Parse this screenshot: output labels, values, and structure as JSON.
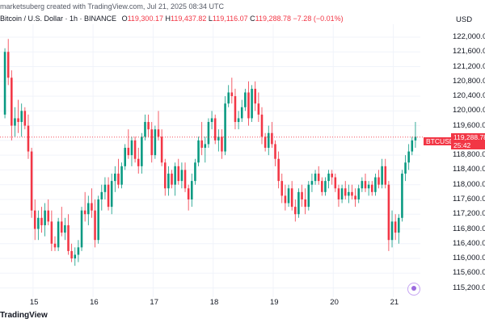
{
  "header": {
    "credit": "marketsuberg created with TradingView.com, Jul 21, 2025 08:34 UTC",
    "symbol_line": "Bitcoin / U.S. Dollar · 1h · BINANCE",
    "ohlc": {
      "o_label": "O",
      "o_value": "119,300.17",
      "h_label": "H",
      "h_value": "119,437.82",
      "l_label": "L",
      "l_value": "119,116.07",
      "c_label": "C",
      "c_value": "119,288.78",
      "change": "−7.28 (−0.01%)"
    }
  },
  "axis": {
    "currency": "USD",
    "price_ticks": [
      "122,000.00",
      "121,600.00",
      "121,200.00",
      "120,800.00",
      "120,400.00",
      "120,000.00",
      "119,600.00",
      "119,200.00",
      "118,800.00",
      "118,400.00",
      "118,000.00",
      "117,600.00",
      "117,200.00",
      "116,800.00",
      "116,400.00",
      "116,000.00",
      "115,600.00",
      "115,200.00"
    ],
    "date_ticks": [
      "15",
      "16",
      "17",
      "18",
      "19",
      "20",
      "21"
    ]
  },
  "last_price": {
    "symbol": "BTCUSD",
    "price": "119,288.78",
    "countdown": "25:42"
  },
  "footer": {
    "logo_text": "TradingView"
  },
  "colors": {
    "up": "#089981",
    "down": "#f23645",
    "grid": "#f0f3fa",
    "text": "#131722"
  },
  "chart_data": {
    "type": "candlestick",
    "x_unit": "days (Jul 2025)",
    "ylim": [
      114950,
      122350
    ],
    "xlim": [
      14.45,
      21.45
    ],
    "candles": [
      [
        119900,
        121700,
        119800,
        121600
      ],
      [
        121600,
        121950,
        120700,
        120900
      ],
      [
        120900,
        121100,
        119200,
        119600
      ],
      [
        119600,
        120100,
        119300,
        119800
      ],
      [
        119800,
        120300,
        119400,
        119700
      ],
      [
        119700,
        120200,
        119300,
        120000
      ],
      [
        120000,
        120100,
        119500,
        119600
      ],
      [
        119600,
        119900,
        118700,
        118900
      ],
      [
        118900,
        119000,
        117100,
        117300
      ],
      [
        117300,
        117600,
        116500,
        116800
      ],
      [
        116800,
        117300,
        116500,
        117100
      ],
      [
        117100,
        117400,
        116700,
        116900
      ],
      [
        116900,
        117500,
        116600,
        117300
      ],
      [
        117300,
        117600,
        116900,
        117000
      ],
      [
        117000,
        117300,
        116200,
        116400
      ],
      [
        116400,
        116600,
        116200,
        116300
      ],
      [
        116300,
        117100,
        116200,
        117000
      ],
      [
        117000,
        117400,
        116600,
        116700
      ],
      [
        116700,
        117100,
        116500,
        116900
      ],
      [
        116900,
        117200,
        116100,
        116200
      ],
      [
        116200,
        116400,
        115900,
        116000
      ],
      [
        116000,
        116300,
        115800,
        116100
      ],
      [
        116100,
        116500,
        115900,
        116300
      ],
      [
        116300,
        117400,
        116200,
        117300
      ],
      [
        117300,
        117800,
        117000,
        117200
      ],
      [
        117200,
        117700,
        116900,
        117500
      ],
      [
        117500,
        117900,
        117100,
        117300
      ],
      [
        117300,
        117600,
        116300,
        116500
      ],
      [
        116500,
        117700,
        116400,
        117600
      ],
      [
        117600,
        118000,
        117300,
        117800
      ],
      [
        117800,
        118200,
        117600,
        118000
      ],
      [
        118000,
        118200,
        117300,
        117400
      ],
      [
        117400,
        118300,
        117200,
        118100
      ],
      [
        118100,
        118500,
        117800,
        118300
      ],
      [
        118300,
        118700,
        117900,
        118000
      ],
      [
        118000,
        118600,
        117900,
        118500
      ],
      [
        118500,
        119100,
        118400,
        119000
      ],
      [
        119000,
        119500,
        118700,
        118800
      ],
      [
        118800,
        119300,
        118500,
        119200
      ],
      [
        119200,
        119300,
        118600,
        118700
      ],
      [
        118700,
        119000,
        118300,
        118500
      ],
      [
        118500,
        119400,
        118300,
        119300
      ],
      [
        119300,
        119900,
        119200,
        119700
      ],
      [
        119700,
        119900,
        119300,
        119500
      ],
      [
        119500,
        119700,
        118600,
        118800
      ],
      [
        118800,
        119600,
        118700,
        119500
      ],
      [
        119500,
        120000,
        119200,
        119300
      ],
      [
        119300,
        119500,
        118500,
        118600
      ],
      [
        118600,
        118700,
        117700,
        117900
      ],
      [
        117900,
        118500,
        117700,
        118300
      ],
      [
        118300,
        118400,
        117900,
        118000
      ],
      [
        118000,
        118600,
        117700,
        118500
      ],
      [
        118500,
        118700,
        118000,
        118100
      ],
      [
        118100,
        118600,
        117900,
        118400
      ],
      [
        118400,
        118600,
        117800,
        117900
      ],
      [
        117900,
        118000,
        117300,
        117600
      ],
      [
        117600,
        118300,
        117400,
        118100
      ],
      [
        118100,
        118700,
        118000,
        118600
      ],
      [
        118600,
        119300,
        118500,
        119200
      ],
      [
        119200,
        119700,
        118800,
        119000
      ],
      [
        119000,
        119300,
        118600,
        119100
      ],
      [
        119100,
        119800,
        119000,
        119700
      ],
      [
        119700,
        120000,
        119500,
        119800
      ],
      [
        119800,
        119900,
        119100,
        119200
      ],
      [
        119200,
        119500,
        118900,
        119300
      ],
      [
        119300,
        119500,
        118700,
        118900
      ],
      [
        118900,
        120400,
        118800,
        120200
      ],
      [
        120200,
        120700,
        120100,
        120500
      ],
      [
        120500,
        120900,
        120200,
        120400
      ],
      [
        120400,
        120600,
        119500,
        119700
      ],
      [
        119700,
        120000,
        119500,
        119800
      ],
      [
        119800,
        120300,
        119700,
        120100
      ],
      [
        120100,
        120600,
        120000,
        120500
      ],
      [
        120500,
        120800,
        119600,
        119800
      ],
      [
        119800,
        120700,
        119700,
        120600
      ],
      [
        120600,
        120800,
        120000,
        120200
      ],
      [
        120200,
        120500,
        119700,
        119900
      ],
      [
        119900,
        120100,
        119100,
        119300
      ],
      [
        119300,
        119400,
        118900,
        119000
      ],
      [
        119000,
        119600,
        118800,
        119400
      ],
      [
        119400,
        119700,
        119000,
        119100
      ],
      [
        119100,
        119200,
        118500,
        118700
      ],
      [
        118700,
        118900,
        117900,
        118100
      ],
      [
        118100,
        118300,
        117500,
        117700
      ],
      [
        117700,
        118000,
        117300,
        117500
      ],
      [
        117500,
        118000,
        117400,
        117900
      ],
      [
        117900,
        118100,
        117300,
        117400
      ],
      [
        117400,
        117600,
        117000,
        117200
      ],
      [
        117200,
        117900,
        117100,
        117800
      ],
      [
        117800,
        118000,
        117400,
        117600
      ],
      [
        117600,
        117900,
        117200,
        117400
      ],
      [
        117400,
        118100,
        117300,
        118000
      ],
      [
        118000,
        118300,
        117800,
        118100
      ],
      [
        118100,
        118400,
        118000,
        118300
      ],
      [
        118300,
        118500,
        118000,
        118100
      ],
      [
        118100,
        118200,
        117700,
        117800
      ],
      [
        117800,
        118200,
        117700,
        118100
      ],
      [
        118100,
        118400,
        117900,
        118300
      ],
      [
        118300,
        118400,
        118000,
        118200
      ],
      [
        118200,
        118300,
        117800,
        117900
      ],
      [
        117900,
        118000,
        117400,
        117600
      ],
      [
        117600,
        118000,
        117500,
        117900
      ],
      [
        117900,
        118100,
        117600,
        117700
      ],
      [
        117700,
        118000,
        117500,
        117800
      ],
      [
        117800,
        118000,
        117600,
        117700
      ],
      [
        117700,
        117900,
        117400,
        117600
      ],
      [
        117600,
        118000,
        117500,
        117900
      ],
      [
        117900,
        118200,
        117800,
        118100
      ],
      [
        118100,
        118300,
        117800,
        117900
      ],
      [
        117900,
        118100,
        117700,
        118000
      ],
      [
        118000,
        118100,
        117700,
        117800
      ],
      [
        117800,
        118300,
        117700,
        118200
      ],
      [
        118200,
        118400,
        117900,
        118000
      ],
      [
        118000,
        118700,
        117900,
        118500
      ],
      [
        118500,
        118700,
        117900,
        118000
      ],
      [
        118000,
        118100,
        116200,
        116500
      ],
      [
        116500,
        117300,
        116300,
        117000
      ],
      [
        117000,
        117200,
        116500,
        116700
      ],
      [
        116700,
        117200,
        116400,
        117100
      ],
      [
        117100,
        118400,
        117000,
        118300
      ],
      [
        118300,
        118800,
        118100,
        118600
      ],
      [
        118600,
        119100,
        118400,
        118900
      ],
      [
        118900,
        119300,
        118800,
        119200
      ],
      [
        119200,
        119700,
        119000,
        119300
      ]
    ]
  }
}
